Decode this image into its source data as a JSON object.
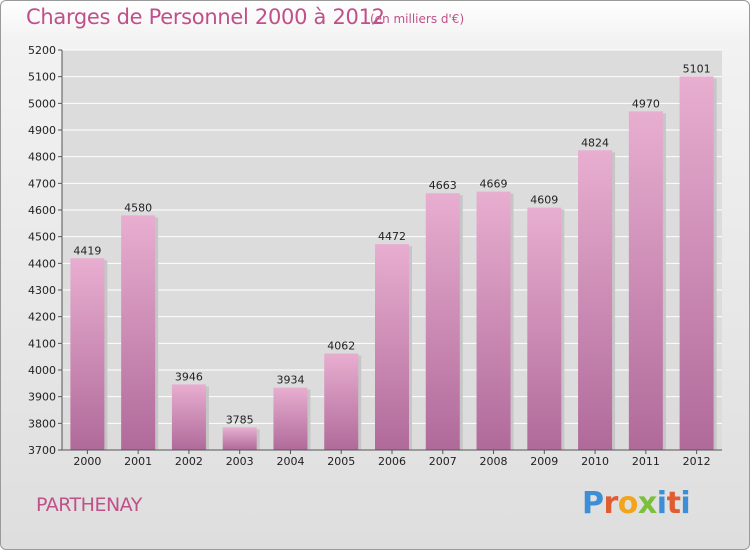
{
  "header": {
    "title": "Charges de Personnel 2000 à 2012",
    "subtitle": "(en milliers d'€)"
  },
  "footer": {
    "city": "PARTHENAY",
    "brand_letters": [
      "P",
      "r",
      "o",
      "x",
      "i",
      "t",
      "i"
    ]
  },
  "colors": {
    "title": "#c0508a",
    "bar_top": "#e8aed0",
    "bar_bottom": "#b06a9a",
    "gridline": "#ffffff",
    "axis": "#555555"
  },
  "chart_data": {
    "type": "bar",
    "title": "Charges de Personnel 2000 à 2012",
    "subtitle": "(en milliers d'€)",
    "categories": [
      "2000",
      "2001",
      "2002",
      "2003",
      "2004",
      "2005",
      "2006",
      "2007",
      "2008",
      "2009",
      "2010",
      "2011",
      "2012"
    ],
    "values": [
      4419,
      4580,
      3946,
      3785,
      3934,
      4062,
      4472,
      4663,
      4669,
      4609,
      4824,
      4970,
      5101
    ],
    "data_labels": [
      "4419",
      "4580",
      "3946",
      "3785",
      "3934",
      "4062",
      "4472",
      "4663",
      "4669",
      "4609",
      "4824",
      "4970",
      "5101"
    ],
    "ylim": [
      3700,
      5200
    ],
    "yticks": [
      3700,
      3800,
      3900,
      4000,
      4100,
      4200,
      4300,
      4400,
      4500,
      4600,
      4700,
      4800,
      4900,
      5000,
      5100,
      5200
    ],
    "grid": true,
    "xlabel": "",
    "ylabel": ""
  }
}
